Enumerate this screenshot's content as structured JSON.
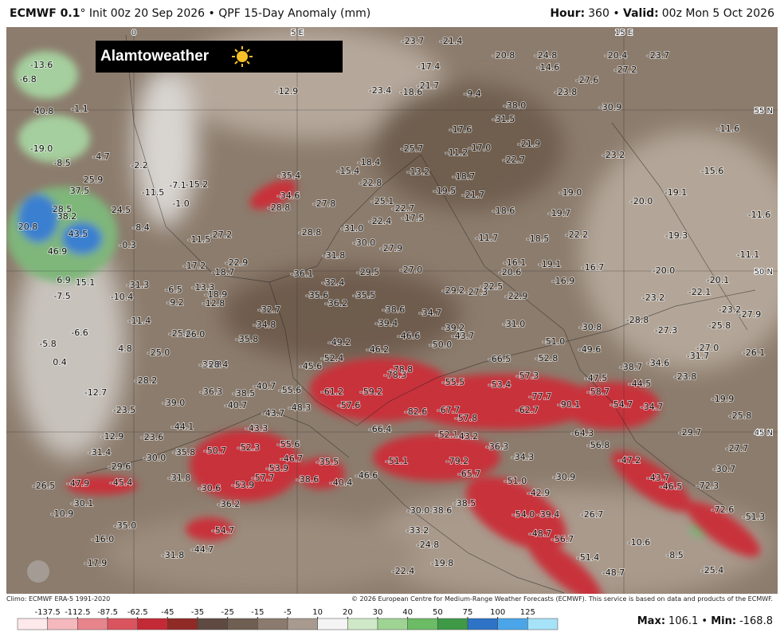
{
  "header": {
    "model": "ECMWF 0.1",
    "description": "° Init 00z 20 Sep 2026 • QPF 15-Day Anomaly (mm)",
    "hour_label": "Hour:",
    "hour": "360 •",
    "valid_label": "Valid:",
    "valid": "00z Mon 5 Oct 2026"
  },
  "branding": "Alamtoweather",
  "grid_labels": [
    "0",
    "5 E",
    "15 E",
    "55 N",
    "50 N",
    "45 N"
  ],
  "map_labels": [
    "-13.6",
    "-6.8",
    "40.8",
    "-1.1",
    "-19.0",
    "-8.5",
    "-4.7",
    "-2.2",
    "-12.9",
    "-23.7",
    "-21.4",
    "-17.4",
    "-20.8",
    "-24.8",
    "-14.6",
    "-20.4",
    "-23.7",
    "-27.2",
    "-27.6",
    "-23.4",
    "-18.6",
    "-21.7",
    "-9.4",
    "-23.8",
    "-30.9",
    "-38.0",
    "-31.5",
    "-11.6",
    "-17.6",
    "-17.0",
    "-21.9",
    "-25.7",
    "-11.2",
    "-22.7",
    "-23.2",
    "-15.6",
    "-13.2",
    "-18.7",
    "-19.5",
    "-21.7",
    "-19.0",
    "-19.1",
    "-35.4",
    "-15.4",
    "-18.4",
    "-22.8",
    "-34.6",
    "-28.8",
    "-27.8",
    "-25.1",
    "-22.7",
    "-17.5",
    "-22.4",
    "-18.6",
    "-19.7",
    "-20.0",
    "-11.6",
    "-31.0",
    "-27.2",
    "-28.8",
    "-30.0",
    "-27.9",
    "-11.7",
    "-18.5",
    "-22.2",
    "-19.3",
    "-11.5",
    "-31.8",
    "-11.1",
    "-17.2",
    "-22.9",
    "-18.7",
    "-36.1",
    "-29.5",
    "-27.0",
    "-16.1",
    "-19.1",
    "-16.7",
    "-20.0",
    "-20.6",
    "-32.4",
    "-20.1",
    "-31.3",
    "-6.5",
    "-13.3",
    "-29.2",
    "-27.3",
    "-22.5",
    "-16.9",
    "-22.1",
    "-23.2",
    "-10.4",
    "-9.2",
    "-18.9",
    "-12.8",
    "-35.6",
    "-36.2",
    "-35.5",
    "-22.9",
    "-32.7",
    "-38.6",
    "-34.7",
    "-23.2",
    "-27.9",
    "-11.4",
    "-34.8",
    "-39.4",
    "-39.2",
    "-31.0",
    "-30.8",
    "-28.8",
    "-25.8",
    "-6.6",
    "-25.8",
    "-26.0",
    "-35.8",
    "-49.2",
    "-46.6",
    "-43.7",
    "-27.3",
    "-51.0",
    "-5.8",
    "4.8",
    "-25.0",
    "-46.2",
    "-50.0",
    "-49.6",
    "-27.0",
    "-26.1",
    "-52.4",
    "-66.5",
    "-52.8",
    "-31.7",
    "0.4",
    "-35.8",
    "-28.4",
    "-45.6",
    "-78.8",
    "-78.3",
    "-57.3",
    "-38.7",
    "-34.6",
    "-28.2",
    "-40.7",
    "-55.6",
    "-61.2",
    "-59.2",
    "-55.5",
    "-53.4",
    "-47.5",
    "-23.8",
    "-36.3",
    "-38.5",
    "-77.7",
    "-58.7",
    "-44.5",
    "-12.7",
    "-39.0",
    "-40.7",
    "-57.6",
    "-90.1",
    "-54.7",
    "-34.7",
    "-19.9",
    "-23.5",
    "-43.7",
    "-48.3",
    "-82.6",
    "-67.7",
    "-62.7",
    "-25.8",
    "-57.8",
    "-44.1",
    "-43.3",
    "-66.4",
    "-52.1",
    "-43.2",
    "-64.3",
    "-29.7",
    "-12.9",
    "-23.6",
    "-55.6",
    "-52.3",
    "-36.3",
    "-56.8",
    "-27.7",
    "-31.4",
    "-50.7",
    "-35.8",
    "-30.0",
    "-46.7",
    "-35.5",
    "-51.1",
    "-79.2",
    "-34.3",
    "-47.2",
    "-29.6",
    "-53.9",
    "-65.7",
    "-30.7",
    "-47.9",
    "-45.4",
    "-31.8",
    "-57.7",
    "-38.6",
    "-40.4",
    "-46.6",
    "-51.0",
    "-30.9",
    "-43.7",
    "-46.5",
    "-72.3",
    "-26.5",
    "-30.6",
    "-53.9",
    "-42.9",
    "-38.5",
    "-30.1",
    "-36.2",
    "-38.6",
    "-30.0",
    "-54.0",
    "-39.4",
    "-72.6",
    "-51.3",
    "-10.9",
    "-35.0",
    "-54.7",
    "-33.2",
    "-48.7",
    "-56.7",
    "-26.7",
    "-16.0",
    "-24.8",
    "-10.6",
    "-8.5",
    "-31.8",
    "-44.7",
    "-51.4",
    "-19.8",
    "-17.9",
    "-25.4",
    "-22.4",
    "-48.7",
    "-7.1",
    "-15.2",
    "-11.5",
    "-1.0",
    "37.5",
    "38.2",
    "28.5",
    "24.5",
    "-8.4",
    "20.8",
    "43.5",
    "46.9",
    "6.9",
    "15.1",
    "-7.5",
    "-0.3",
    "25.9"
  ],
  "footer": {
    "climo": "Climo: ECMWF ERA-5 1991-2020",
    "copyright": "© 2026 European Centre for Medium-Range Weather Forecasts (ECMWF). This service is based on data and products of the ECMWF."
  },
  "legend": {
    "ticks": [
      -137.5,
      -112.5,
      -87.5,
      -62.5,
      -45,
      -35,
      -25,
      -15,
      -5,
      10,
      20,
      30,
      40,
      50,
      75,
      100,
      125
    ],
    "colors": [
      "#fde8ea",
      "#f4b8bd",
      "#e8848c",
      "#d9545e",
      "#c32a35",
      "#8f2a26",
      "#5e4a40",
      "#6f5f52",
      "#8a7b6e",
      "#a89a8e",
      "#f4f4f4",
      "#cfe9c8",
      "#9fd393",
      "#6cbb65",
      "#3f9a48",
      "#2f73c6",
      "#4aa6e8",
      "#a6e2f8"
    ],
    "max_label": "Max:",
    "max": "106.1 •",
    "min_label": "Min:",
    "min": "-168.8"
  }
}
